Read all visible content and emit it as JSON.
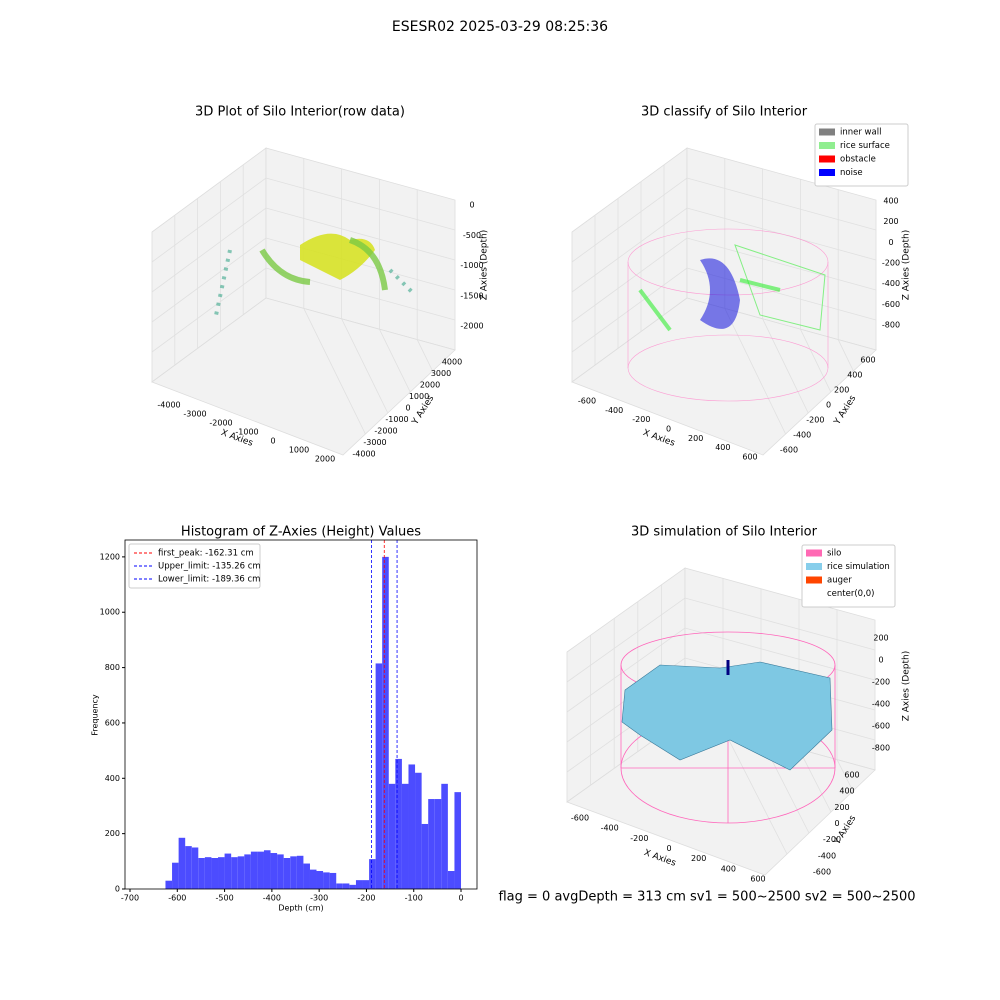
{
  "title": "ESESR02 2025-03-29 08:25:36",
  "footer": "flag = 0     avgDepth = 313 cm  sv1 = 500~2500  sv2 = 500~2500",
  "chart_data": [
    {
      "type": "scatter3d",
      "title": "3D Plot of Silo Interior(row data)",
      "xlabel": "X Axies",
      "ylabel": "Y Axies",
      "zlabel": "Z Axies (Depth)",
      "xticks": [
        -4000,
        -3000,
        -2000,
        -1000,
        0,
        1000,
        2000
      ],
      "yticks": [
        -4000,
        -3000,
        -2000,
        -1000,
        0,
        1000,
        2000,
        3000,
        4000
      ],
      "zticks": [
        0,
        -500,
        -1000,
        -1500,
        -2000
      ]
    },
    {
      "type": "scatter3d",
      "title": "3D classify of Silo Interior",
      "xlabel": "X Axies",
      "ylabel": "Y Axies",
      "zlabel": "Z Axies (Depth)",
      "xticks": [
        -600,
        -400,
        -200,
        0,
        200,
        400,
        600
      ],
      "yticks": [
        -600,
        -400,
        -200,
        0,
        200,
        400,
        600
      ],
      "zticks": [
        400,
        200,
        0,
        -200,
        -400,
        -600,
        -800
      ],
      "legend": [
        {
          "name": "inner wall",
          "color": "#808080"
        },
        {
          "name": "rice surface",
          "color": "#90ee90"
        },
        {
          "name": "obstacle",
          "color": "#ff0000"
        },
        {
          "name": "noise",
          "color": "#0000ff"
        }
      ]
    },
    {
      "type": "histogram",
      "title": "Histogram of Z-Axies (Height) Values",
      "xlabel": "Depth (cm)",
      "ylabel": "Frequency",
      "color": "#4c4cff",
      "bins": [
        -625,
        -611.1,
        -597.2,
        -583.3,
        -569.4,
        -555.6,
        -541.7,
        -527.8,
        -513.9,
        -500,
        -486.1,
        -472.2,
        -458.3,
        -444.4,
        -430.6,
        -416.7,
        -402.8,
        -388.9,
        -375,
        -361.1,
        -347.2,
        -333.3,
        -319.4,
        -305.6,
        -291.7,
        -277.8,
        -263.9,
        -250,
        -236.1,
        -222.2,
        -208.3,
        -194.4,
        -180.6,
        -166.7,
        -152.8,
        -138.9,
        -125,
        -111.1,
        -97.2,
        -83.3,
        -69.4,
        -55.6,
        -41.7,
        -27.8,
        -13.9,
        0
      ],
      "counts": [
        30,
        95,
        185,
        155,
        150,
        112,
        115,
        112,
        115,
        128,
        115,
        118,
        125,
        135,
        135,
        140,
        130,
        125,
        112,
        118,
        120,
        92,
        70,
        65,
        60,
        58,
        20,
        20,
        15,
        32,
        32,
        108,
        815,
        1200,
        380,
        470,
        380,
        450,
        420,
        235,
        325,
        325,
        380,
        65,
        350
      ],
      "xlim": [
        -710.6,
        33.8
      ],
      "ylim": [
        0,
        1261
      ],
      "xticks": [
        -700,
        -600,
        -500,
        -400,
        -300,
        -200,
        -100,
        0
      ],
      "yticks": [
        0,
        200,
        400,
        600,
        800,
        1000,
        1200
      ],
      "vlines": [
        {
          "name": "first_peak: -162.31 cm",
          "value": -162.31,
          "color": "#ff0000"
        },
        {
          "name": "Upper_limit: -135.26 cm",
          "value": -135.26,
          "color": "#0000ff"
        },
        {
          "name": "Lower_limit: -189.36 cm",
          "value": -189.36,
          "color": "#0000ff"
        }
      ]
    },
    {
      "type": "surface3d",
      "title": "3D simulation of Silo Interior",
      "xlabel": "X Axies",
      "ylabel": "Y Axies",
      "zlabel": "Z Axies (Depth)",
      "xticks": [
        -600,
        -400,
        -200,
        0,
        200,
        400,
        600
      ],
      "yticks": [
        -600,
        -400,
        -200,
        0,
        200,
        400,
        600
      ],
      "zticks": [
        200,
        0,
        -200,
        -400,
        -600,
        -800
      ],
      "legend": [
        {
          "name": "silo",
          "color": "#ff69b4"
        },
        {
          "name": "rice simulation",
          "color": "#87ceeb"
        },
        {
          "name": "auger",
          "color": "#ff4500"
        },
        {
          "name": "center(0,0)",
          "color": "#ffffff"
        }
      ]
    }
  ]
}
